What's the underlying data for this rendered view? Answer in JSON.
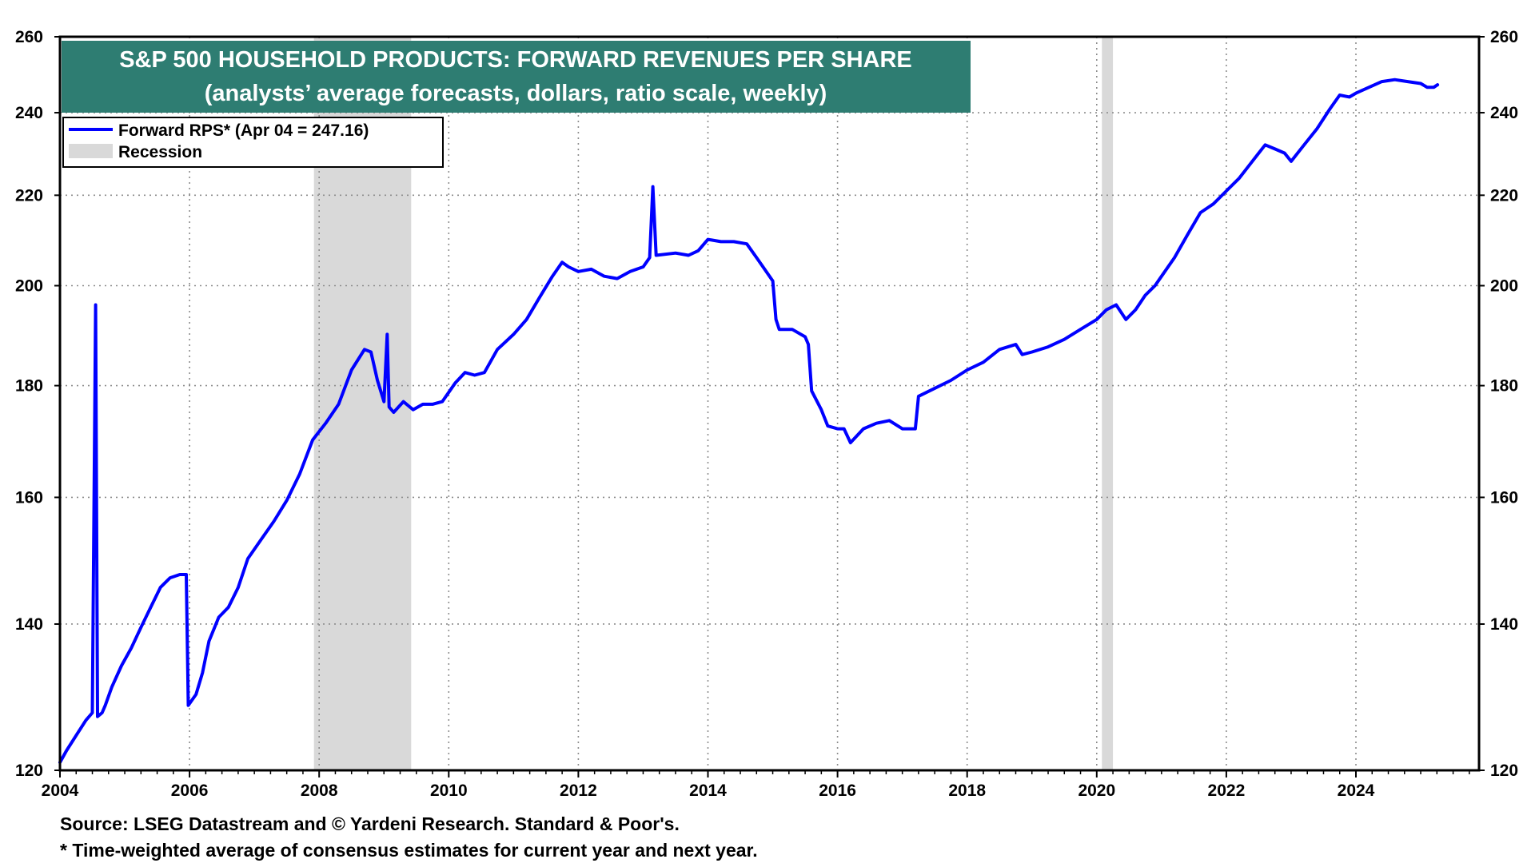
{
  "chart_data": {
    "type": "line",
    "title": "S&P 500 HOUSEHOLD PRODUCTS: FORWARD REVENUES PER SHARE",
    "subtitle": "(analysts’ average forecasts, dollars, ratio scale, weekly)",
    "xlabel": "",
    "ylabel": "",
    "scale": "log",
    "xlim": [
      2004.0,
      2025.9
    ],
    "ylim": [
      120,
      260
    ],
    "x_ticks": [
      "2004",
      "2006",
      "2008",
      "2010",
      "2012",
      "2014",
      "2016",
      "2018",
      "2020",
      "2022",
      "2024"
    ],
    "y_ticks": [
      "120",
      "140",
      "160",
      "180",
      "200",
      "220",
      "240",
      "260"
    ],
    "grid": true,
    "legend_position": "top-left",
    "legend": [
      {
        "label": "Forward RPS* (Apr 04 = 247.16)",
        "kind": "line",
        "color": "#0000ff"
      },
      {
        "label": "Recession",
        "kind": "band",
        "color": "#d9d9d9"
      }
    ],
    "recessions": [
      [
        2007.92,
        2009.42
      ],
      [
        2020.08,
        2020.25
      ]
    ],
    "series": [
      {
        "name": "Forward RPS*",
        "color": "#0000ff",
        "x": [
          2004.0,
          2004.1,
          2004.25,
          2004.4,
          2004.5,
          2004.55,
          2004.58,
          2004.65,
          2004.7,
          2004.8,
          2004.95,
          2005.1,
          2005.25,
          2005.4,
          2005.55,
          2005.7,
          2005.85,
          2005.95,
          2005.98,
          2006.1,
          2006.2,
          2006.3,
          2006.45,
          2006.6,
          2006.75,
          2006.9,
          2007.1,
          2007.3,
          2007.5,
          2007.7,
          2007.9,
          2008.1,
          2008.3,
          2008.5,
          2008.7,
          2008.8,
          2008.9,
          2009.0,
          2009.05,
          2009.08,
          2009.15,
          2009.3,
          2009.45,
          2009.6,
          2009.75,
          2009.9,
          2010.1,
          2010.25,
          2010.4,
          2010.55,
          2010.75,
          2011.0,
          2011.2,
          2011.4,
          2011.6,
          2011.75,
          2011.85,
          2012.0,
          2012.2,
          2012.4,
          2012.6,
          2012.8,
          2013.0,
          2013.1,
          2013.15,
          2013.2,
          2013.5,
          2013.7,
          2013.85,
          2014.0,
          2014.2,
          2014.4,
          2014.6,
          2014.75,
          2014.85,
          2015.0,
          2015.05,
          2015.1,
          2015.3,
          2015.5,
          2015.55,
          2015.6,
          2015.75,
          2015.85,
          2016.0,
          2016.1,
          2016.2,
          2016.4,
          2016.6,
          2016.8,
          2017.0,
          2017.2,
          2017.25,
          2017.5,
          2017.75,
          2018.0,
          2018.25,
          2018.5,
          2018.75,
          2018.85,
          2019.0,
          2019.25,
          2019.5,
          2019.75,
          2020.0,
          2020.15,
          2020.3,
          2020.45,
          2020.6,
          2020.75,
          2020.9,
          2021.0,
          2021.2,
          2021.4,
          2021.6,
          2021.8,
          2022.0,
          2022.2,
          2022.35,
          2022.5,
          2022.6,
          2022.75,
          2022.9,
          2023.0,
          2023.2,
          2023.4,
          2023.6,
          2023.75,
          2023.9,
          2024.0,
          2024.2,
          2024.4,
          2024.6,
          2024.8,
          2025.0,
          2025.1,
          2025.2,
          2025.26
        ],
        "values": [
          121,
          122.5,
          124.5,
          126.5,
          127.5,
          196,
          127,
          127.5,
          128.5,
          131,
          134,
          136.5,
          139.5,
          142.5,
          145.5,
          147,
          147.5,
          147.5,
          128.5,
          130,
          133,
          137.5,
          141,
          142.5,
          145.5,
          150,
          153,
          156,
          159.5,
          164,
          170,
          173,
          176.5,
          183,
          187,
          186.5,
          181,
          177,
          190,
          176,
          175,
          177,
          175.5,
          176.5,
          176.5,
          177,
          180.5,
          182.5,
          182,
          182.5,
          187,
          190,
          193,
          197.5,
          202,
          205,
          204,
          203,
          203.5,
          202,
          201.5,
          203,
          204,
          206,
          222,
          206.5,
          207,
          206.5,
          207.5,
          210,
          209.5,
          209.5,
          209,
          206,
          204,
          201,
          193,
          191,
          191,
          189.5,
          188,
          179,
          175.5,
          172.5,
          172,
          172,
          169.5,
          172,
          173,
          173.5,
          172,
          172,
          178,
          179.5,
          181,
          183,
          184.5,
          187,
          188,
          186,
          186.5,
          187.5,
          189,
          191,
          193,
          195,
          196,
          193,
          195,
          198,
          200,
          202,
          206,
          211,
          216,
          218,
          221,
          224,
          227,
          230,
          232,
          231,
          230,
          228,
          232,
          236,
          241,
          244.5,
          244,
          245,
          246.5,
          248,
          248.5,
          248,
          247.5,
          246.5,
          246.5,
          247.16
        ]
      }
    ]
  }
}
